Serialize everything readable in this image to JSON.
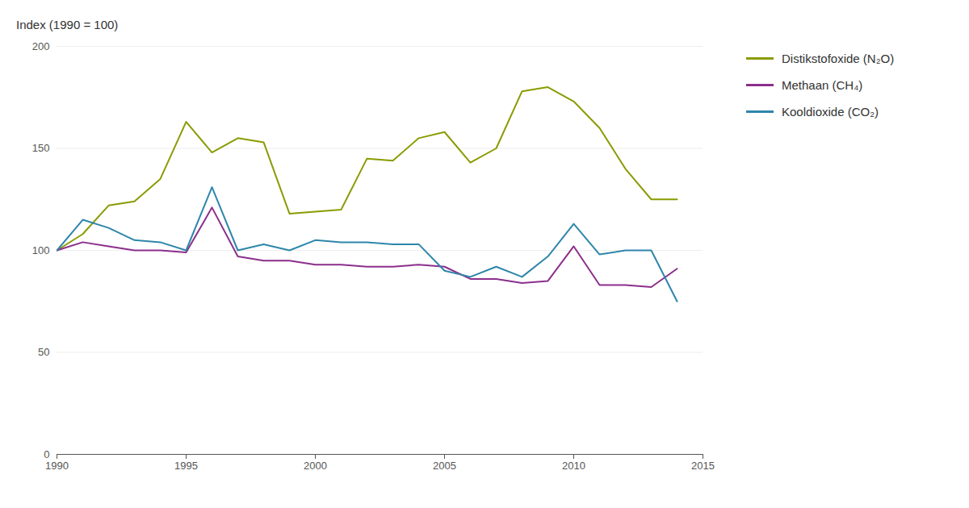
{
  "chart_data": {
    "type": "line",
    "ylabel": "Index (1990 = 100)",
    "x": [
      1990,
      1991,
      1992,
      1993,
      1994,
      1995,
      1996,
      1997,
      1998,
      1999,
      2000,
      2001,
      2002,
      2003,
      2004,
      2005,
      2006,
      2007,
      2008,
      2009,
      2010,
      2011,
      2012,
      2013,
      2014
    ],
    "series": [
      {
        "name": "Distikstofoxide (N₂O)",
        "color": "#8B9B00",
        "values": [
          100,
          108,
          122,
          124,
          135,
          163,
          148,
          155,
          153,
          118,
          119,
          120,
          145,
          144,
          155,
          158,
          143,
          150,
          178,
          180,
          173,
          160,
          140,
          125,
          125
        ]
      },
      {
        "name": "Methaan (CH₄)",
        "color": "#8B2F8B",
        "values": [
          100,
          104,
          102,
          100,
          100,
          99,
          121,
          97,
          95,
          95,
          93,
          93,
          92,
          92,
          93,
          92,
          86,
          86,
          84,
          85,
          102,
          83,
          83,
          82,
          91
        ]
      },
      {
        "name": "Kooldioxide (CO₂)",
        "color": "#2E86AB",
        "values": [
          100,
          115,
          111,
          105,
          104,
          100,
          131,
          100,
          103,
          100,
          105,
          104,
          104,
          103,
          103,
          90,
          87,
          92,
          87,
          97,
          113,
          98,
          100,
          100,
          75
        ]
      }
    ],
    "xlim": [
      1990,
      2015
    ],
    "ylim": [
      0,
      200
    ],
    "xticks": [
      1990,
      1995,
      2000,
      2005,
      2010,
      2015
    ],
    "yticks": [
      0,
      50,
      100,
      150,
      200
    ],
    "grid": true,
    "legend": "right"
  }
}
